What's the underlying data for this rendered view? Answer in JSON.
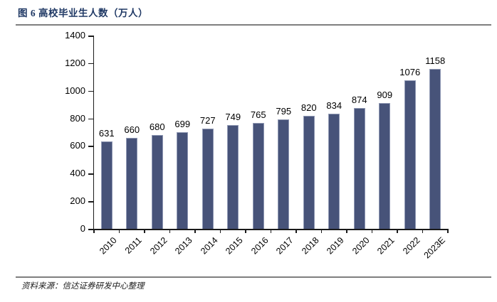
{
  "figure": {
    "title": "图 6 高校毕业生人数（万人）",
    "source": "资料来源：信达证券研发中心整理"
  },
  "chart_data": {
    "type": "bar",
    "title": "高校毕业生人数（万人）",
    "categories": [
      "2010",
      "2011",
      "2012",
      "2013",
      "2014",
      "2015",
      "2016",
      "2017",
      "2018",
      "2019",
      "2020",
      "2021",
      "2022",
      "2023E"
    ],
    "values": [
      631,
      660,
      680,
      699,
      727,
      749,
      765,
      795,
      820,
      834,
      874,
      909,
      1076,
      1158
    ],
    "xlabel": "",
    "ylabel": "",
    "ylim": [
      0,
      1400
    ],
    "yticks": [
      0,
      200,
      400,
      600,
      800,
      1000,
      1200,
      1400
    ],
    "grid": false,
    "legend_position": "none",
    "value_labels": true,
    "xlabel_rotation": -45,
    "bar_color": "#475379",
    "bar_border_color": "#9099b4",
    "axis_color": "#1a1a1a",
    "label_color": "#000000"
  },
  "colors": {
    "title": "#1f3864",
    "divider": "#7f7f7f",
    "background": "#ffffff"
  }
}
